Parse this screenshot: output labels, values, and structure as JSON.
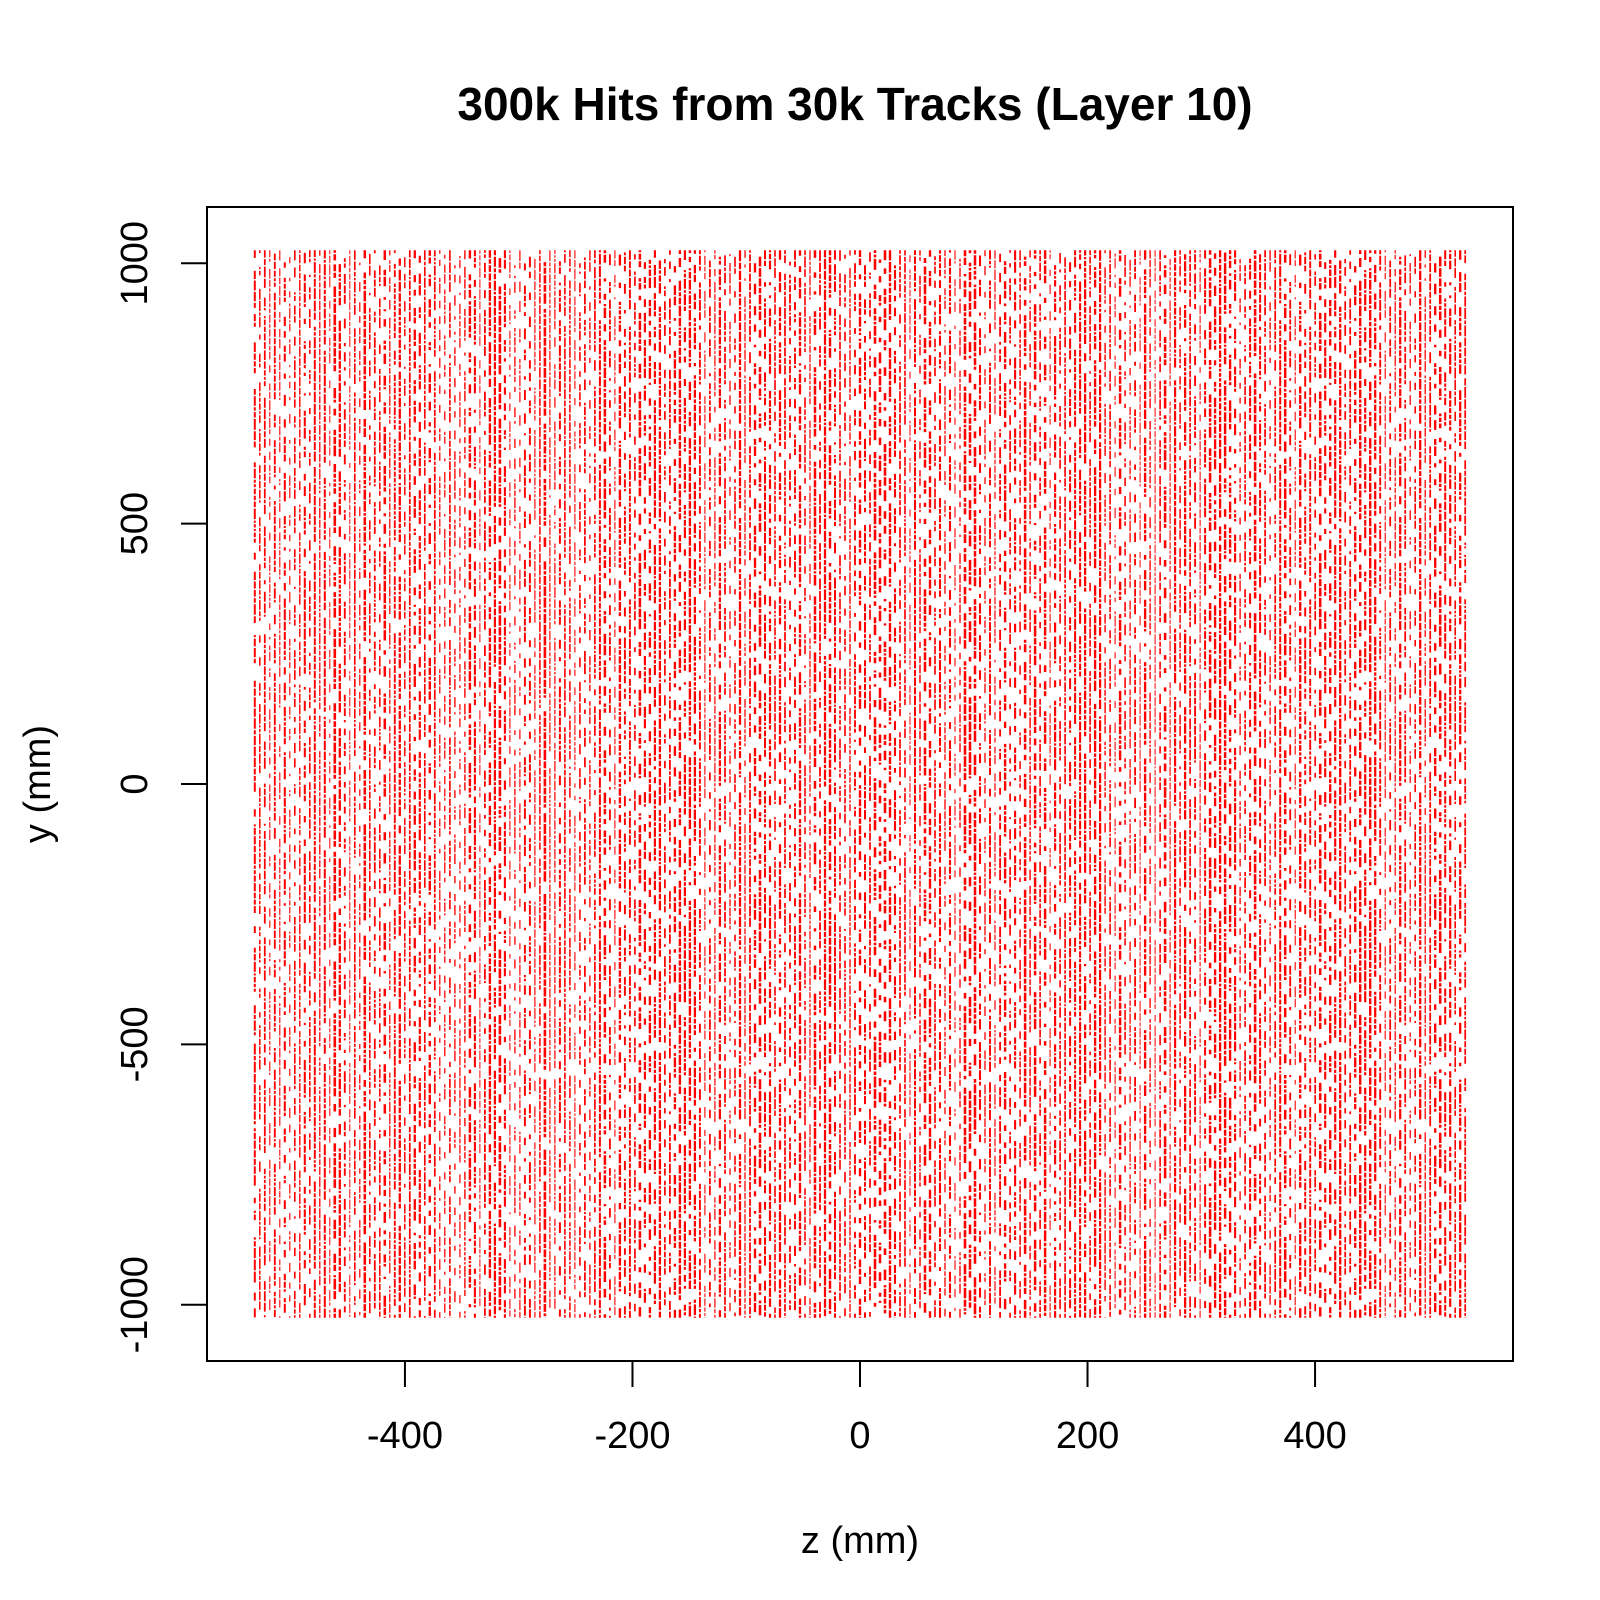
{
  "chart_data": {
    "type": "scatter",
    "title": "300k Hits from 30k Tracks (Layer 10)",
    "xlabel": "z (mm)",
    "ylabel": "y (mm)",
    "xlim": [
      -574,
      574
    ],
    "ylim": [
      -1108,
      1108
    ],
    "x_ticks": [
      -400,
      -200,
      0,
      200,
      400
    ],
    "x_tick_labels": [
      "-400",
      "-200",
      "0",
      "200",
      "400"
    ],
    "y_ticks": [
      -1000,
      -500,
      0,
      500,
      1000
    ],
    "y_tick_labels": [
      "-1000",
      "-500",
      "0",
      "500",
      "1000"
    ],
    "grid": false,
    "legend": "none",
    "point_color": "#ff0000",
    "hit_distribution": {
      "z_range": [
        -532,
        532
      ],
      "y_range": [
        -1025,
        1025
      ],
      "z_strip_pitch_mm": 4.4,
      "total_hits": 300000,
      "total_tracks": 30000
    }
  }
}
